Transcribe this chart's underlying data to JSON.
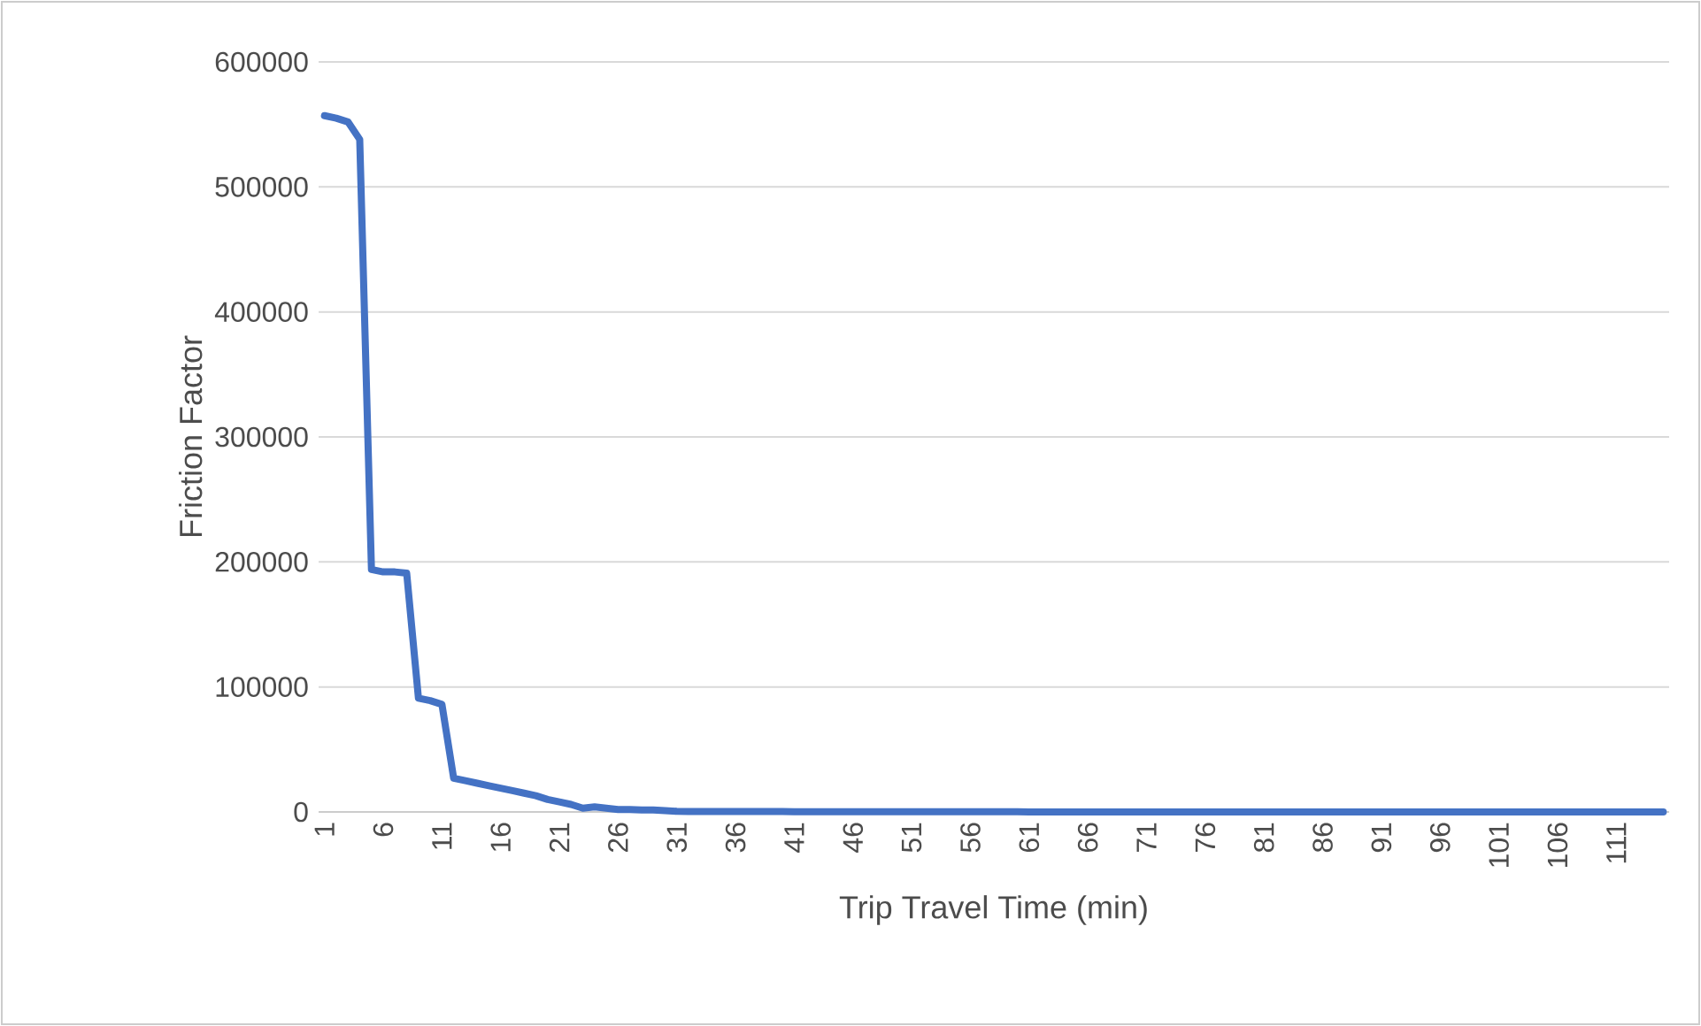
{
  "chart_data": {
    "type": "line",
    "xlabel": "Trip Travel Time (min)",
    "ylabel": "Friction Factor",
    "categories": [
      "1",
      null,
      null,
      null,
      null,
      "6",
      null,
      null,
      null,
      null,
      "11",
      null,
      null,
      null,
      null,
      "16",
      null,
      null,
      null,
      null,
      "21",
      null,
      null,
      null,
      null,
      "26",
      null,
      null,
      null,
      null,
      "31",
      null,
      null,
      null,
      null,
      "36",
      null,
      null,
      null,
      null,
      "41",
      null,
      null,
      null,
      null,
      "46",
      null,
      null,
      null,
      null,
      "51",
      null,
      null,
      null,
      null,
      "56",
      null,
      null,
      null,
      null,
      "61",
      null,
      null,
      null,
      null,
      "66",
      null,
      null,
      null,
      null,
      "71",
      null,
      null,
      null,
      null,
      "76",
      null,
      null,
      null,
      null,
      "81",
      null,
      null,
      null,
      null,
      "86",
      null,
      null,
      null,
      null,
      "91",
      null,
      null,
      null,
      null,
      "96",
      null,
      null,
      null,
      null,
      "101",
      null,
      null,
      null,
      null,
      "106",
      null,
      null,
      null,
      null,
      "111",
      null,
      null,
      null,
      null
    ],
    "series": [
      {
        "color": "#4472c4",
        "values": [
          557000,
          555000,
          552000,
          538000,
          194000,
          192000,
          192000,
          191000,
          91000,
          89000,
          86000,
          27000,
          25000,
          23000,
          21000,
          19000,
          17000,
          15000,
          13000,
          10000,
          8000,
          6000,
          3000,
          4000,
          3000,
          2000,
          2000,
          1500,
          1500,
          1000,
          500,
          300,
          300,
          300,
          300,
          300,
          300,
          300,
          300,
          300,
          100,
          100,
          100,
          100,
          100,
          100,
          100,
          100,
          100,
          100,
          100,
          100,
          100,
          100,
          100,
          100,
          100,
          100,
          100,
          100,
          0,
          0,
          0,
          0,
          0,
          0,
          0,
          0,
          0,
          0,
          0,
          0,
          0,
          0,
          0,
          0,
          0,
          0,
          0,
          0,
          0,
          0,
          0,
          0,
          0,
          0,
          0,
          0,
          0,
          0,
          0,
          0,
          0,
          0,
          0,
          0,
          0,
          0,
          0,
          0,
          0,
          0,
          0,
          0,
          0,
          0,
          0,
          0,
          0,
          0,
          0,
          0,
          0,
          0,
          0
        ]
      }
    ],
    "ylim": [
      0,
      600000
    ],
    "yticks": [
      0,
      100000,
      200000,
      300000,
      400000,
      500000,
      600000
    ],
    "grid": "y",
    "legend": false,
    "marker": "none",
    "line_style": "solid"
  }
}
